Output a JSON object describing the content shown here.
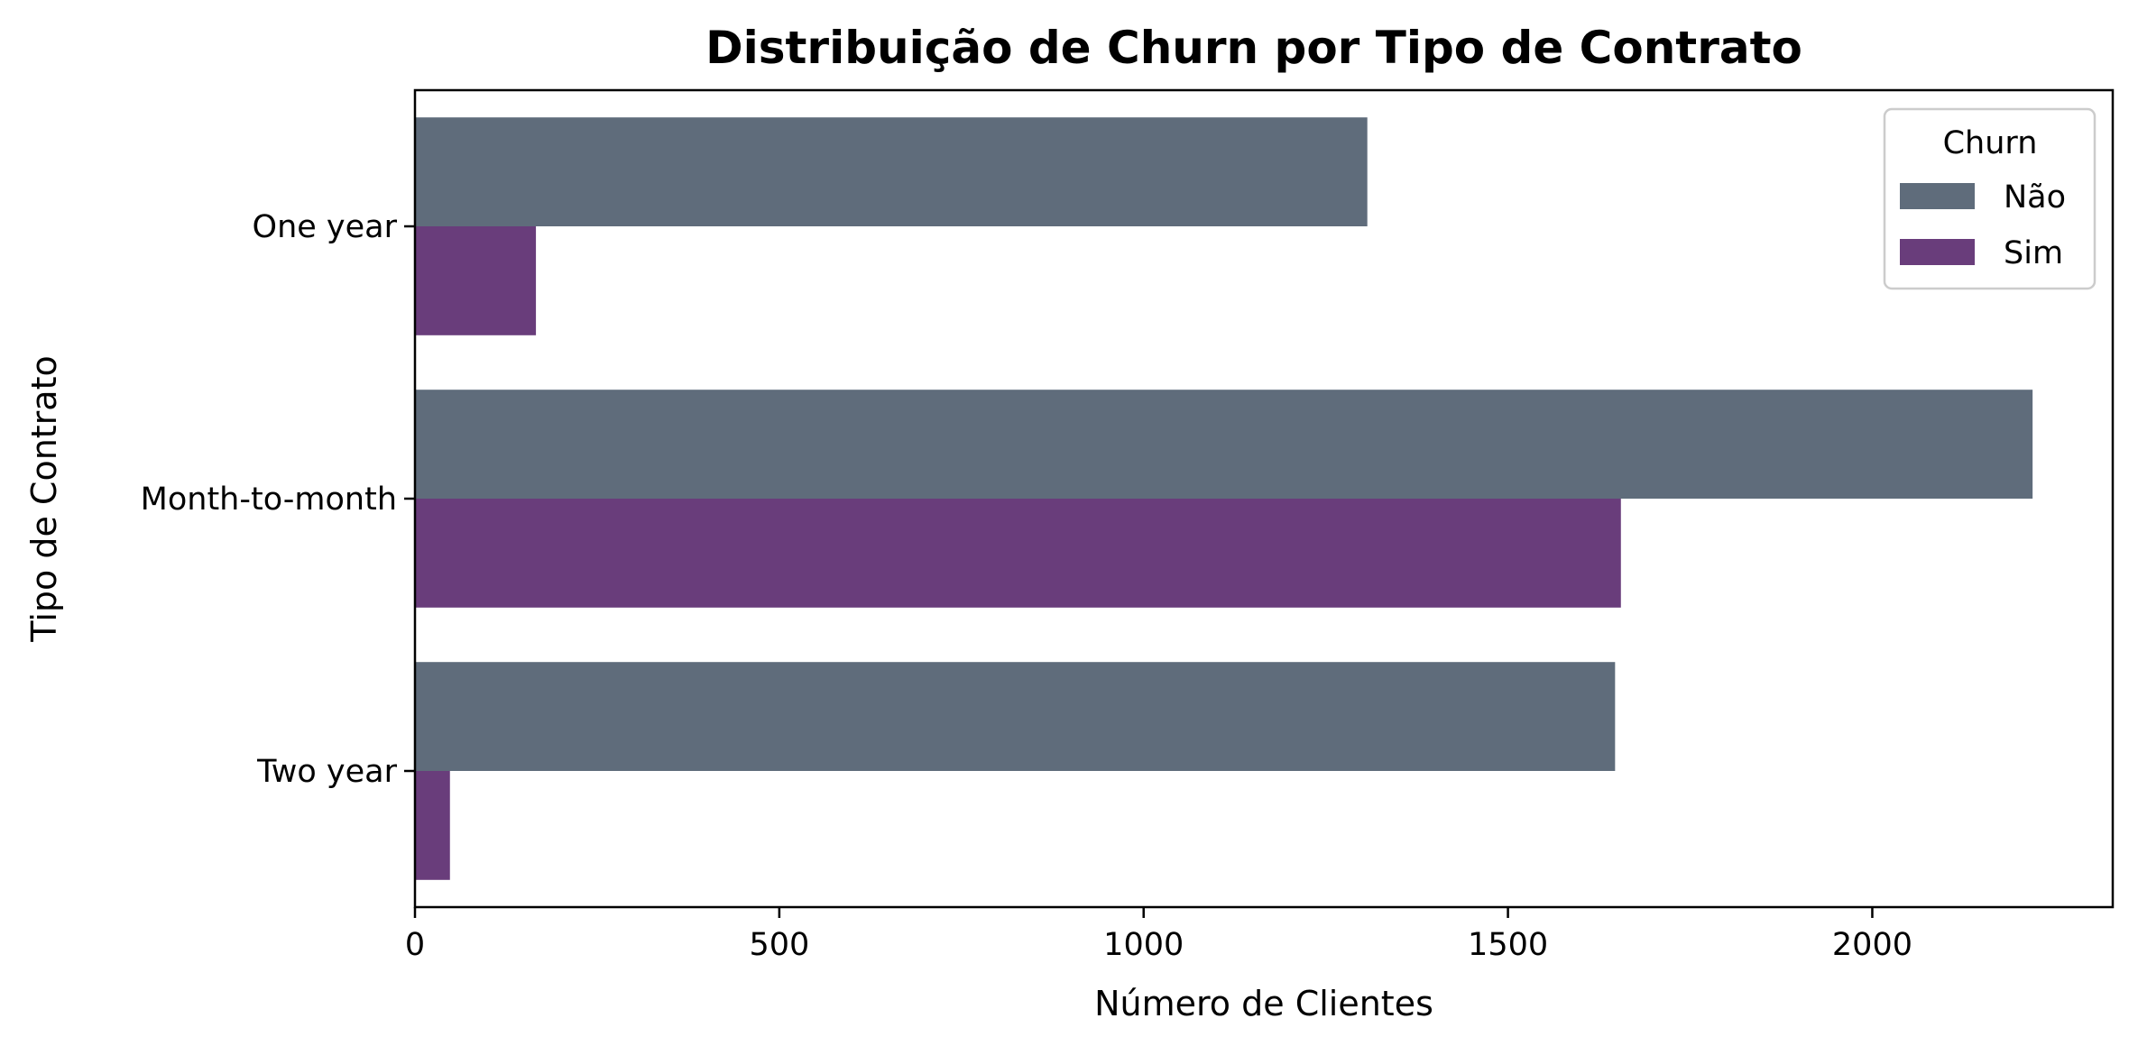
{
  "chart_data": {
    "type": "bar",
    "orientation": "horizontal",
    "title": "Distribuição de Churn por Tipo de Contrato",
    "xlabel": "Número de Clientes",
    "ylabel": "Tipo de Contrato",
    "categories": [
      "One year",
      "Month-to-month",
      "Two year"
    ],
    "series": [
      {
        "name": "Não",
        "color": "#5f6c7b",
        "values": [
          1307,
          2220,
          1647
        ]
      },
      {
        "name": "Sim",
        "color": "#693d7b",
        "values": [
          166,
          1655,
          48
        ]
      }
    ],
    "xlim": [
      0,
      2330
    ],
    "xticks": [
      0,
      500,
      1000,
      1500,
      2000
    ],
    "grid": false,
    "legend": {
      "title": "Churn",
      "placement": "top-right"
    }
  }
}
